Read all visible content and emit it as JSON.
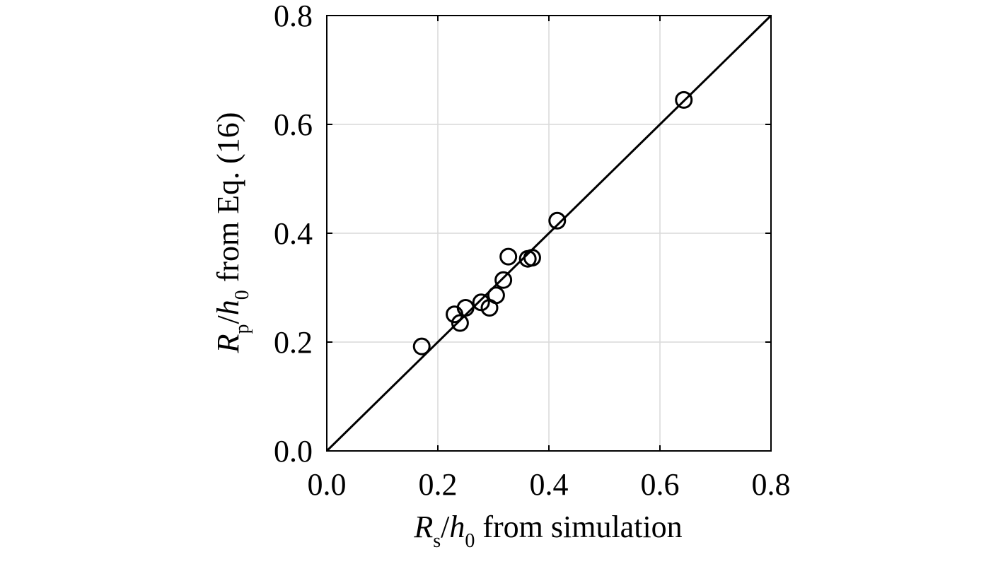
{
  "chart_data": {
    "type": "scatter",
    "xlabel": {
      "main": "R",
      "sub": "s",
      "slash": "/",
      "main2": "h",
      "sub2": "0",
      "rest": " from simulation"
    },
    "ylabel": {
      "main": "R",
      "sub": "p",
      "slash": "/",
      "main2": "h",
      "sub2": "0",
      "rest": " from Eq. (16)"
    },
    "xlim": [
      0.0,
      0.8
    ],
    "ylim": [
      0.0,
      0.8
    ],
    "x_ticks": [
      0.0,
      0.2,
      0.4,
      0.6,
      0.8
    ],
    "y_ticks": [
      0.0,
      0.2,
      0.4,
      0.6,
      0.8
    ],
    "x_tick_labels": [
      "0.0",
      "0.2",
      "0.4",
      "0.6",
      "0.8"
    ],
    "y_tick_labels": [
      "0.0",
      "0.2",
      "0.4",
      "0.6",
      "0.8"
    ],
    "grid": true,
    "reference_line": {
      "type": "y=x",
      "from": [
        0.0,
        0.0
      ],
      "to": [
        0.8,
        0.8
      ]
    },
    "series": [
      {
        "marker": "open-circle",
        "x": [
          0.171,
          0.23,
          0.24,
          0.25,
          0.278,
          0.293,
          0.305,
          0.318,
          0.327,
          0.362,
          0.37,
          0.415,
          0.643
        ],
        "y": [
          0.192,
          0.251,
          0.235,
          0.263,
          0.273,
          0.263,
          0.286,
          0.314,
          0.357,
          0.353,
          0.355,
          0.423,
          0.645
        ]
      }
    ],
    "colors": {
      "axis": "#000000",
      "grid": "#d9d9d9",
      "marker": "#000000",
      "background": "#ffffff"
    }
  }
}
